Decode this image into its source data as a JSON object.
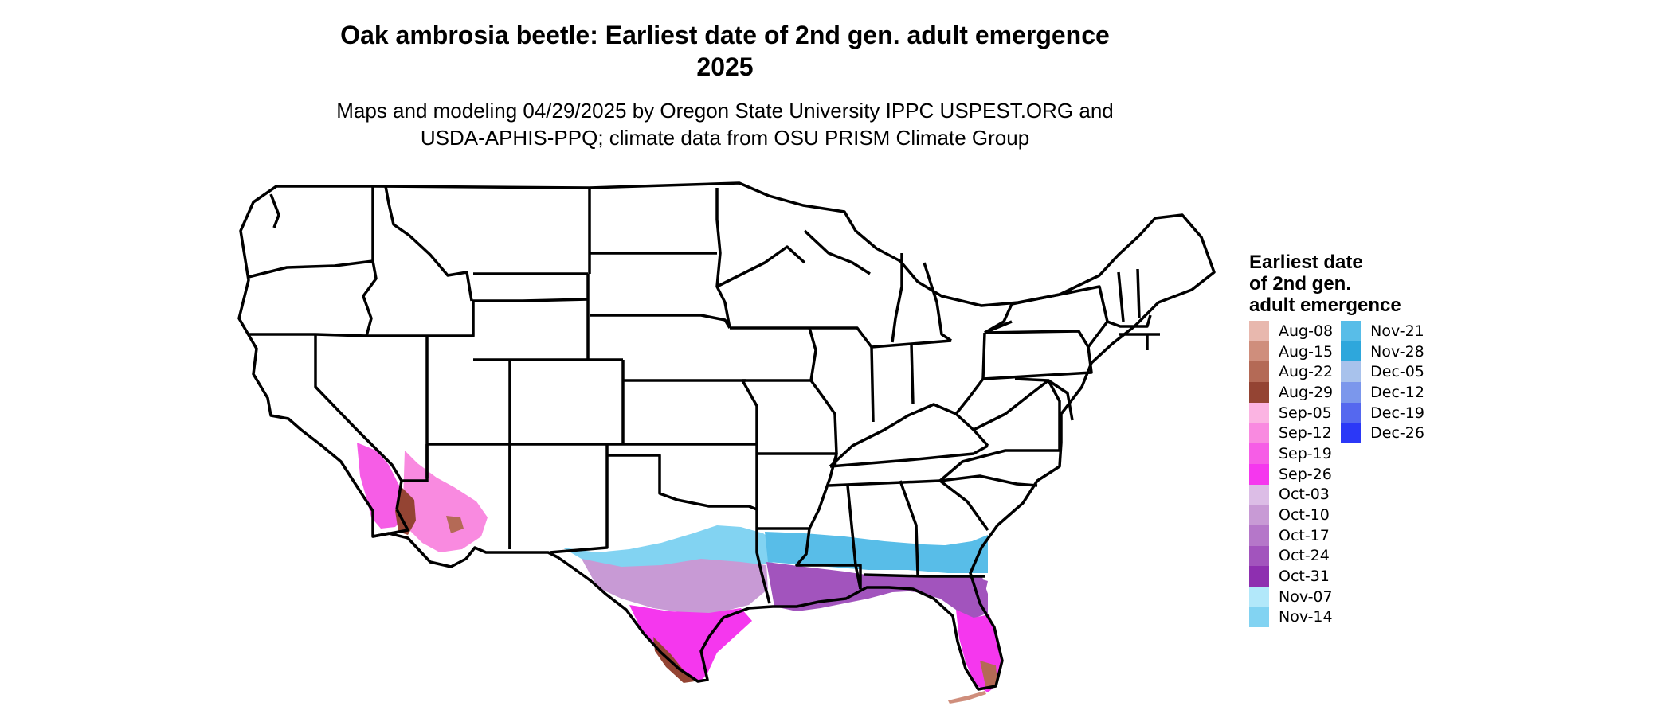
{
  "title_line1": "Oak ambrosia beetle: Earliest date of 2nd gen. adult emergence",
  "title_line2": "2025",
  "subtitle_line1": "Maps and modeling 04/29/2025 by Oregon State University IPPC USPEST.ORG and",
  "subtitle_line2": "USDA-APHIS-PPQ; climate data from OSU PRISM Climate Group",
  "legend": {
    "title_line1": "Earliest date",
    "title_line2": "of 2nd gen.",
    "title_line3": "adult emergence",
    "columns": [
      [
        {
          "label": "Aug-08",
          "color": "#e8b8ae"
        },
        {
          "label": "Aug-15",
          "color": "#cf8e7c"
        },
        {
          "label": "Aug-22",
          "color": "#b46a56"
        },
        {
          "label": "Aug-29",
          "color": "#944433"
        },
        {
          "label": "Sep-05",
          "color": "#fbb4e2"
        },
        {
          "label": "Sep-12",
          "color": "#f98ae0"
        },
        {
          "label": "Sep-19",
          "color": "#f65de6"
        },
        {
          "label": "Sep-26",
          "color": "#f537ee"
        },
        {
          "label": "Oct-03",
          "color": "#dcbde6"
        },
        {
          "label": "Oct-10",
          "color": "#c89ad5"
        },
        {
          "label": "Oct-17",
          "color": "#b577c9"
        },
        {
          "label": "Oct-24",
          "color": "#a254bd"
        },
        {
          "label": "Oct-31",
          "color": "#8e2fb0"
        },
        {
          "label": "Nov-07",
          "color": "#b2e8fa"
        },
        {
          "label": "Nov-14",
          "color": "#82d3f2"
        }
      ],
      [
        {
          "label": "Nov-21",
          "color": "#58bde8"
        },
        {
          "label": "Nov-28",
          "color": "#2ea7dc"
        },
        {
          "label": "Dec-05",
          "color": "#a8c2ec"
        },
        {
          "label": "Dec-12",
          "color": "#7b97ec"
        },
        {
          "label": "Dec-19",
          "color": "#5568ef"
        },
        {
          "label": "Dec-26",
          "color": "#2b38f7"
        }
      ]
    ]
  }
}
